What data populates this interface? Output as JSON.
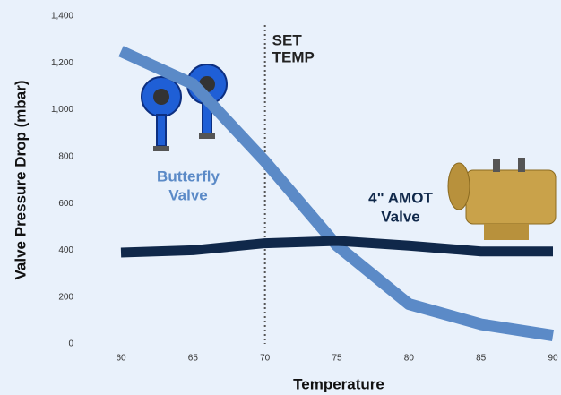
{
  "chart_data": {
    "type": "line",
    "x_label": "Temperature",
    "y_label": "Valve Pressure Drop (mbar)",
    "x": [
      60,
      65,
      70,
      75,
      80,
      85,
      90
    ],
    "series": [
      {
        "name": "Butterfly Valve",
        "name_lines": [
          "Butterfly",
          "Valve"
        ],
        "color": "#5b8ac7",
        "values": [
          1250,
          1110,
          780,
          420,
          170,
          84,
          36
        ]
      },
      {
        "name": "4\" AMOT Valve",
        "name_lines": [
          "4\" AMOT",
          "Valve"
        ],
        "color": "#10284a",
        "values": [
          390,
          400,
          430,
          440,
          420,
          395,
          395
        ]
      }
    ],
    "xlim": [
      60,
      90
    ],
    "xticks": [
      60,
      65,
      70,
      75,
      80,
      85,
      90
    ],
    "ylim": [
      0,
      1400
    ],
    "yticks": [
      0,
      {
        "value": 200,
        "label": "200"
      },
      {
        "value": 400,
        "label": "400"
      },
      {
        "value": 600,
        "label": "600"
      },
      {
        "value": 800,
        "label": "800"
      },
      {
        "value": 1000,
        "label": "1,000"
      },
      {
        "value": 1200,
        "label": "1,200"
      },
      {
        "value": 1400,
        "label": "1,400"
      }
    ],
    "reference_line": {
      "x": 70,
      "label_lines": [
        "SET",
        "TEMP"
      ]
    }
  }
}
